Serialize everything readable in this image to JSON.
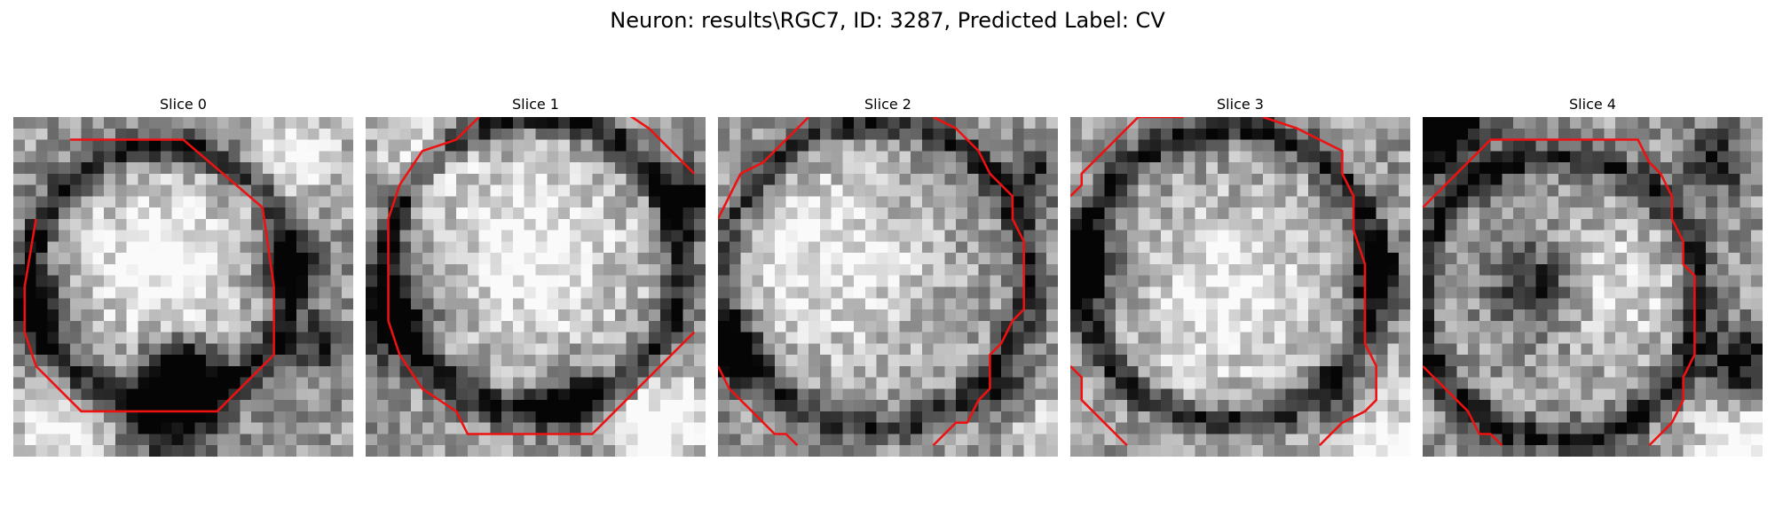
{
  "figure": {
    "title": "Neuron: results\\RGC7, ID: 3287, Predicted Label: CV"
  },
  "slices": [
    {
      "title": "Slice 0",
      "seed": 11,
      "contour": [
        [
          [
            5,
            2
          ],
          [
            15,
            2
          ],
          [
            22,
            8
          ],
          [
            23,
            15
          ],
          [
            23,
            21
          ],
          [
            18,
            26
          ],
          [
            6,
            26
          ],
          [
            2,
            22
          ],
          [
            1,
            19
          ],
          [
            1,
            15
          ],
          [
            2,
            9
          ]
        ]
      ],
      "dark": [
        [
          15,
          23,
          2.2,
          1.0
        ],
        [
          14,
          26,
          3,
          0.6
        ],
        [
          2,
          17,
          2.5,
          0.5
        ],
        [
          24,
          13,
          2,
          0.5
        ],
        [
          27,
          20,
          2,
          0.4
        ]
      ],
      "bright": [
        [
          13,
          13,
          5,
          0.45
        ],
        [
          4,
          28,
          3,
          0.4
        ],
        [
          25,
          3,
          3,
          0.4
        ]
      ],
      "ring": [
        13,
        14,
        11.5,
        0.55
      ]
    },
    {
      "title": "Slice 1",
      "seed": 23,
      "contour": [
        [
          [
            29,
            5
          ],
          [
            25,
            1
          ],
          [
            22,
            -1
          ],
          [
            11,
            -1
          ],
          [
            8,
            2
          ],
          [
            5,
            3
          ],
          [
            3,
            6
          ],
          [
            2,
            9
          ],
          [
            2,
            18
          ],
          [
            3,
            21
          ],
          [
            5,
            24
          ],
          [
            8,
            26
          ],
          [
            9,
            28
          ],
          [
            20,
            28
          ],
          [
            22,
            26
          ],
          [
            24,
            24
          ],
          [
            29,
            19
          ]
        ]
      ],
      "dark": [
        [
          2,
          18,
          2.5,
          0.7
        ],
        [
          18,
          25,
          2,
          0.5
        ],
        [
          29,
          7,
          2,
          0.5
        ]
      ],
      "bright": [
        [
          15,
          12,
          6,
          0.4
        ],
        [
          26,
          27,
          3,
          0.5
        ],
        [
          5,
          3,
          3,
          0.3
        ]
      ],
      "ring": [
        15,
        13,
        13,
        0.55
      ]
    },
    {
      "title": "Slice 2",
      "seed": 37,
      "contour": [
        [
          [
            0,
            9
          ],
          [
            1,
            7
          ],
          [
            2,
            5
          ],
          [
            4,
            4
          ],
          [
            6,
            2
          ],
          [
            8,
            0
          ]
        ],
        [
          [
            19,
            0
          ],
          [
            21,
            1
          ],
          [
            23,
            3
          ],
          [
            24,
            5
          ],
          [
            26,
            7
          ],
          [
            26,
            9
          ],
          [
            27,
            11
          ],
          [
            27,
            17
          ],
          [
            26,
            18
          ],
          [
            25,
            20
          ],
          [
            24,
            21
          ],
          [
            24,
            24
          ],
          [
            23,
            25
          ],
          [
            22,
            27
          ],
          [
            21,
            27
          ],
          [
            19,
            29
          ]
        ],
        [
          [
            0,
            22
          ],
          [
            1,
            24
          ],
          [
            2,
            25
          ],
          [
            3,
            26
          ],
          [
            4,
            27
          ],
          [
            5,
            28
          ],
          [
            6,
            28
          ],
          [
            7,
            29
          ]
        ]
      ],
      "dark": [
        [
          1,
          21,
          2,
          0.7
        ],
        [
          26,
          25,
          2,
          0.4
        ],
        [
          28,
          5,
          2,
          0.4
        ]
      ],
      "bright": [
        [
          10,
          13,
          6,
          0.35
        ],
        [
          28,
          27,
          2,
          0.4
        ]
      ],
      "ring": [
        14,
        14,
        13.5,
        0.45
      ]
    },
    {
      "title": "Slice 3",
      "seed": 51,
      "contour": [
        [
          [
            0,
            7
          ],
          [
            1,
            6
          ],
          [
            1,
            5
          ],
          [
            2,
            4
          ],
          [
            3,
            3
          ],
          [
            4,
            2
          ],
          [
            6,
            0
          ],
          [
            10,
            0
          ]
        ],
        [
          [
            17,
            0
          ],
          [
            20,
            1
          ],
          [
            22,
            2
          ],
          [
            24,
            3
          ],
          [
            24,
            5
          ],
          [
            25,
            7
          ],
          [
            25,
            10
          ],
          [
            26,
            13
          ],
          [
            26,
            20
          ],
          [
            27,
            22
          ],
          [
            27,
            25
          ],
          [
            26,
            26
          ],
          [
            24,
            27
          ],
          [
            22,
            29
          ]
        ],
        [
          [
            0,
            22
          ],
          [
            1,
            23
          ],
          [
            1,
            25
          ],
          [
            3,
            27
          ],
          [
            4,
            28
          ],
          [
            5,
            29
          ]
        ]
      ],
      "dark": [
        [
          1,
          13,
          2.5,
          0.6
        ],
        [
          27,
          14,
          2,
          0.5
        ],
        [
          24,
          25,
          2,
          0.4
        ]
      ],
      "bright": [
        [
          14,
          16,
          6,
          0.35
        ],
        [
          27,
          28,
          3,
          0.45
        ]
      ],
      "ring": [
        14,
        14,
        13,
        0.5
      ]
    },
    {
      "title": "Slice 4",
      "seed": 67,
      "contour": [
        [
          [
            0,
            8
          ],
          [
            2,
            6
          ],
          [
            3,
            5
          ],
          [
            4,
            4
          ],
          [
            5,
            3
          ],
          [
            6,
            2
          ],
          [
            8,
            2
          ],
          [
            11,
            2
          ],
          [
            14,
            2
          ],
          [
            17,
            2
          ],
          [
            19,
            2
          ],
          [
            20,
            4
          ],
          [
            21,
            5
          ],
          [
            22,
            7
          ],
          [
            22,
            9
          ],
          [
            23,
            11
          ],
          [
            23,
            13
          ],
          [
            24,
            14
          ],
          [
            24,
            21
          ],
          [
            23,
            23
          ],
          [
            23,
            25
          ],
          [
            22,
            27
          ],
          [
            21,
            28
          ],
          [
            20,
            29
          ]
        ],
        [
          [
            0,
            22
          ],
          [
            1,
            23
          ],
          [
            2,
            24
          ],
          [
            3,
            25
          ],
          [
            4,
            26
          ],
          [
            5,
            28
          ],
          [
            6,
            28
          ],
          [
            7,
            29
          ]
        ]
      ],
      "dark": [
        [
          1,
          1,
          3,
          0.9
        ],
        [
          10,
          15,
          2.5,
          0.5
        ],
        [
          26,
          4,
          2,
          0.5
        ],
        [
          28,
          22,
          2.5,
          0.6
        ]
      ],
      "bright": [
        [
          17,
          15,
          4,
          0.3
        ],
        [
          28,
          29,
          3,
          0.5
        ]
      ],
      "ring": [
        12,
        16,
        12.5,
        0.5
      ]
    }
  ],
  "colors": {
    "contour": "#ee1111"
  }
}
